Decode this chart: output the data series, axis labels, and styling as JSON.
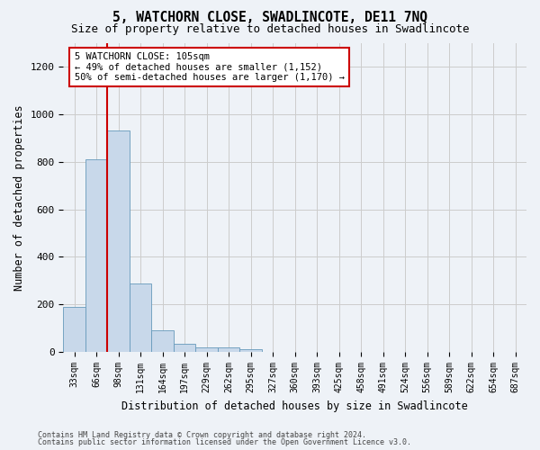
{
  "title": "5, WATCHORN CLOSE, SWADLINCOTE, DE11 7NQ",
  "subtitle": "Size of property relative to detached houses in Swadlincote",
  "xlabel": "Distribution of detached houses by size in Swadlincote",
  "ylabel": "Number of detached properties",
  "footer_line1": "Contains HM Land Registry data © Crown copyright and database right 2024.",
  "footer_line2": "Contains public sector information licensed under the Open Government Licence v3.0.",
  "bin_labels": [
    "33sqm",
    "66sqm",
    "98sqm",
    "131sqm",
    "164sqm",
    "197sqm",
    "229sqm",
    "262sqm",
    "295sqm",
    "327sqm",
    "360sqm",
    "393sqm",
    "425sqm",
    "458sqm",
    "491sqm",
    "524sqm",
    "556sqm",
    "589sqm",
    "622sqm",
    "654sqm",
    "687sqm"
  ],
  "bar_heights": [
    190,
    810,
    930,
    290,
    90,
    35,
    20,
    18,
    12,
    0,
    0,
    0,
    0,
    0,
    0,
    0,
    0,
    0,
    0,
    0,
    0
  ],
  "bar_color": "#c8d8ea",
  "bar_edge_color": "#6699bb",
  "annotation_text": "5 WATCHORN CLOSE: 105sqm\n← 49% of detached houses are smaller (1,152)\n50% of semi-detached houses are larger (1,170) →",
  "vline_x": 1.5,
  "vline_color": "#cc0000",
  "annotation_box_facecolor": "#ffffff",
  "annotation_box_edgecolor": "#cc0000",
  "ylim": [
    0,
    1300
  ],
  "yticks": [
    0,
    200,
    400,
    600,
    800,
    1000,
    1200
  ],
  "grid_color": "#cccccc",
  "background_color": "#eef2f7",
  "title_fontsize": 10.5,
  "subtitle_fontsize": 9,
  "ylabel_fontsize": 8.5,
  "xlabel_fontsize": 8.5,
  "ytick_fontsize": 8,
  "xtick_fontsize": 7,
  "annotation_fontsize": 7.5,
  "footer_fontsize": 6
}
